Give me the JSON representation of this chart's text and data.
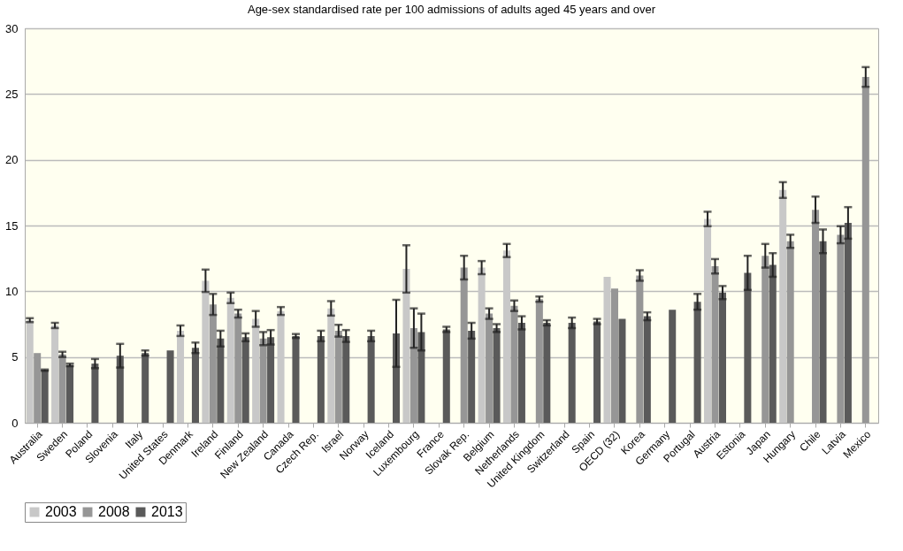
{
  "chart_data": {
    "type": "bar",
    "title": "Age-sex standardised rate per 100 admissions of adults aged 45 years and over",
    "categories": [
      "Australia",
      "Sweden",
      "Poland",
      "Slovenia",
      "Italy",
      "United States",
      "Denmark",
      "Ireland",
      "Finland",
      "New Zealand",
      "Canada",
      "Czech Rep.",
      "Israel",
      "Norway",
      "Iceland",
      "Luxembourg",
      "France",
      "Slovak Rep.",
      "Belgium",
      "Netherlands",
      "United Kingdom",
      "Switzerland",
      "Spain",
      "OECD (32)",
      "Korea",
      "Germany",
      "Portugal",
      "Austria",
      "Estonia",
      "Japan",
      "Hungary",
      "Chile",
      "Latvia",
      "Mexico"
    ],
    "series": [
      {
        "name": "2003",
        "color": "#c8c8c8",
        "values": [
          7.8,
          7.4,
          null,
          null,
          null,
          null,
          7.0,
          10.8,
          9.5,
          7.9,
          8.5,
          null,
          8.7,
          null,
          null,
          11.7,
          null,
          null,
          11.8,
          13.1,
          null,
          null,
          null,
          11.1,
          null,
          null,
          null,
          15.5,
          null,
          null,
          17.7,
          null,
          null,
          null
        ],
        "errors": [
          0.15,
          0.2,
          null,
          null,
          null,
          null,
          0.4,
          0.85,
          0.4,
          0.6,
          0.3,
          null,
          0.55,
          null,
          null,
          1.8,
          null,
          null,
          0.5,
          0.5,
          null,
          null,
          null,
          null,
          null,
          null,
          null,
          0.55,
          null,
          null,
          0.6,
          null,
          null,
          null
        ]
      },
      {
        "name": "2008",
        "color": "#969696",
        "values": [
          5.3,
          5.2,
          null,
          null,
          null,
          null,
          null,
          9.0,
          8.3,
          6.4,
          null,
          null,
          7.0,
          null,
          null,
          7.2,
          null,
          11.8,
          8.3,
          8.9,
          9.4,
          null,
          null,
          10.2,
          11.2,
          null,
          null,
          11.9,
          null,
          12.7,
          13.8,
          16.2,
          14.3,
          26.3
        ],
        "errors": [
          null,
          0.2,
          null,
          null,
          null,
          null,
          null,
          0.8,
          0.3,
          0.5,
          null,
          null,
          0.45,
          null,
          null,
          1.5,
          null,
          0.9,
          0.4,
          0.4,
          0.2,
          null,
          null,
          null,
          0.4,
          null,
          null,
          0.55,
          null,
          0.9,
          0.5,
          1.0,
          0.65,
          0.75
        ]
      },
      {
        "name": "2013",
        "color": "#5a5a5a",
        "values": [
          4.0,
          4.4,
          4.5,
          5.1,
          5.3,
          5.5,
          5.7,
          6.4,
          6.5,
          6.5,
          6.6,
          6.6,
          6.6,
          6.6,
          6.8,
          6.9,
          7.1,
          7.0,
          7.2,
          7.6,
          7.6,
          7.6,
          7.7,
          7.9,
          8.1,
          8.6,
          9.2,
          9.9,
          11.4,
          12.0,
          null,
          13.8,
          15.2,
          null
        ],
        "errors": [
          0.05,
          0.1,
          0.35,
          0.9,
          0.2,
          null,
          0.4,
          0.6,
          0.3,
          0.55,
          0.15,
          0.4,
          0.45,
          0.4,
          2.55,
          1.4,
          0.2,
          0.6,
          0.3,
          0.5,
          0.2,
          0.4,
          0.2,
          null,
          0.3,
          null,
          0.6,
          0.5,
          1.3,
          0.9,
          null,
          0.9,
          1.2,
          null
        ]
      }
    ],
    "ylim": [
      0,
      30
    ],
    "yticks": [
      0,
      5,
      10,
      15,
      20,
      25,
      30
    ],
    "grid": "y",
    "legend": "bottom"
  }
}
